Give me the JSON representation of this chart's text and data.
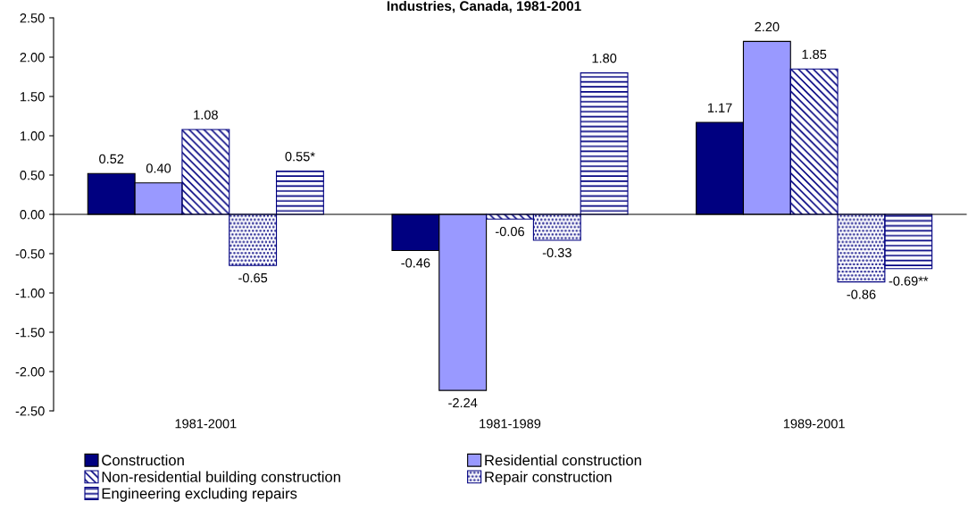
{
  "chart_data": {
    "type": "bar",
    "title": "Industries, Canada, 1981-2001",
    "categories": [
      "1981-2001",
      "1981-1989",
      "1989-2001"
    ],
    "series": [
      {
        "name": "Construction",
        "color": "#000080",
        "values": [
          0.52,
          -0.46,
          1.17
        ],
        "value_labels": [
          "0.52",
          "-0.46",
          "1.17"
        ]
      },
      {
        "name": "Residential construction",
        "color": "#9999ff",
        "values": [
          0.4,
          -2.24,
          2.2
        ],
        "value_labels": [
          "0.40",
          "-2.24",
          "2.20"
        ]
      },
      {
        "name": "Non-residential building construction",
        "color": "#000080",
        "values": [
          1.08,
          -0.06,
          1.85
        ],
        "value_labels": [
          "1.08",
          "-0.06",
          "1.85"
        ]
      },
      {
        "name": "Repair construction",
        "color": "#000080",
        "values": [
          -0.65,
          -0.33,
          -0.86
        ],
        "value_labels": [
          "-0.65",
          "-0.33",
          "-0.86"
        ]
      },
      {
        "name": "Engineering excluding repairs",
        "color": "#000080",
        "values": [
          0.55,
          1.8,
          -0.69
        ],
        "value_labels": [
          "0.55*",
          "1.80",
          "-0.69**"
        ]
      }
    ],
    "ylim": [
      -2.5,
      2.5
    ],
    "yticks": [
      {
        "value": -2.5,
        "label": "-2.50"
      },
      {
        "value": -2,
        "label": "-2.00"
      },
      {
        "value": -1.5,
        "label": "-1.50"
      },
      {
        "value": -1,
        "label": "-1.00"
      },
      {
        "value": -0.5,
        "label": "-0.50"
      },
      {
        "value": 0,
        "label": "0.00"
      },
      {
        "value": 0.5,
        "label": "0.50"
      },
      {
        "value": 1,
        "label": "1.00"
      },
      {
        "value": 1.5,
        "label": "1.50"
      },
      {
        "value": 2,
        "label": "2.00"
      },
      {
        "value": 2.5,
        "label": "2.50"
      }
    ],
    "legend": "bottom"
  }
}
